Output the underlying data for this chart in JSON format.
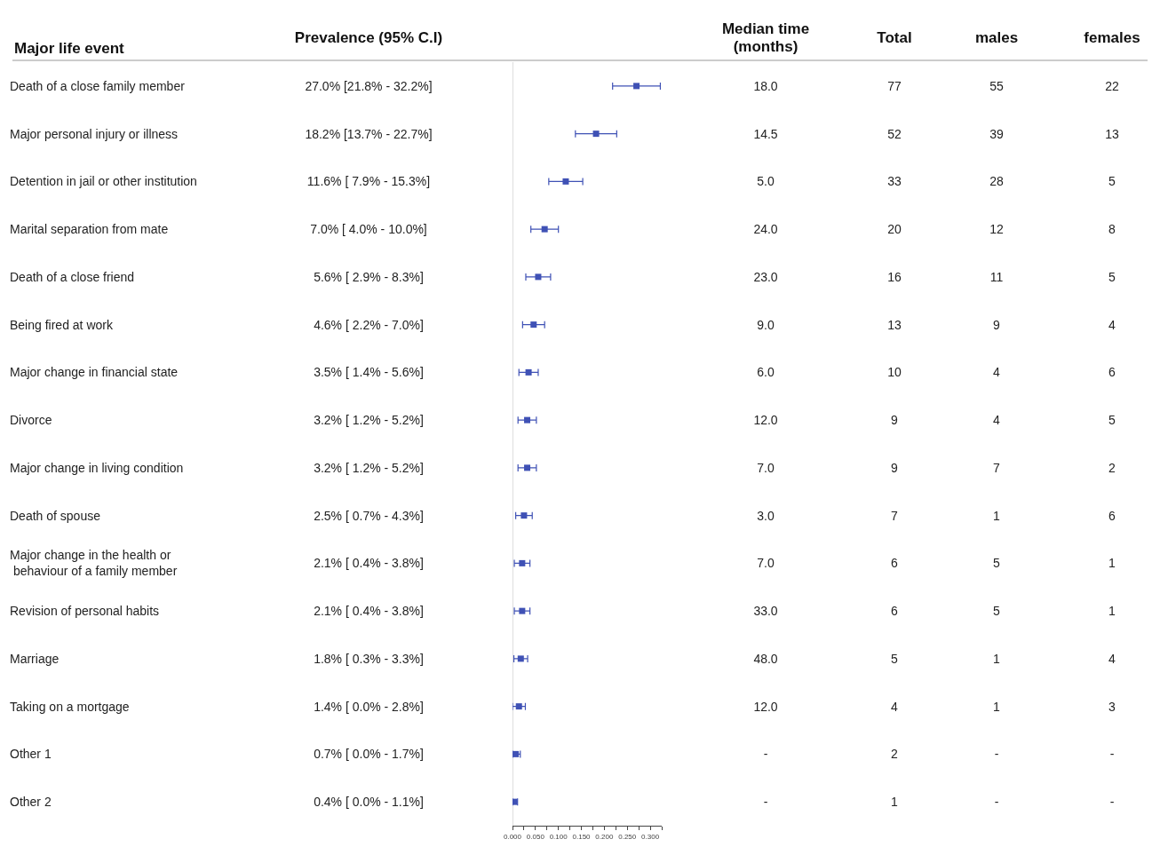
{
  "chart_data": [
    {
      "type": "scatter",
      "orientation": "horizontal",
      "ylabel": "Major life event",
      "marker": "square",
      "tick_labels": "x",
      "categories": [
        "Death of a close family member",
        "Major personal injury or illness",
        "Detention in jail or other institution",
        "Marital separation from mate",
        "Death of a close friend",
        "Being fired at work",
        "Major change in financial state",
        "Divorce",
        "Major change in living condition",
        "Death of spouse",
        "Major change in the health or\n behaviour of a family member",
        "Revision of personal habits",
        "Marriage",
        "Taking on a mortgage",
        "Other 1",
        "Other 2"
      ],
      "xlim": [
        0,
        0.325
      ],
      "xticks": [
        {
          "value": 0,
          "label": "0.000"
        },
        {
          "value": 0.025,
          "label": null
        },
        {
          "value": 0.05,
          "label": "0.050"
        },
        {
          "value": 0.075,
          "label": null
        },
        {
          "value": 0.1,
          "label": "0.100"
        },
        {
          "value": 0.125,
          "label": null
        },
        {
          "value": 0.15,
          "label": "0.150"
        },
        {
          "value": 0.175,
          "label": null
        },
        {
          "value": 0.2,
          "label": "0.200"
        },
        {
          "value": 0.225,
          "label": null
        },
        {
          "value": 0.25,
          "label": "0.250"
        },
        {
          "value": 0.275,
          "label": null
        },
        {
          "value": 0.3,
          "label": "0.300"
        },
        {
          "value": 0.325,
          "label": null
        }
      ],
      "series": [
        {
          "color": "#3f51b5",
          "values": [
            0.27,
            0.182,
            0.116,
            0.07,
            0.056,
            0.046,
            0.035,
            0.032,
            0.032,
            0.025,
            0.021,
            0.021,
            0.018,
            0.014,
            0.007,
            0.004
          ],
          "errors": [
            [
              0.218,
              0.322
            ],
            [
              0.137,
              0.227
            ],
            [
              0.079,
              0.153
            ],
            [
              0.04,
              0.1
            ],
            [
              0.029,
              0.083
            ],
            [
              0.022,
              0.07
            ],
            [
              0.014,
              0.056
            ],
            [
              0.012,
              0.052
            ],
            [
              0.012,
              0.052
            ],
            [
              0.007,
              0.043
            ],
            [
              0.004,
              0.038
            ],
            [
              0.004,
              0.038
            ],
            [
              0.003,
              0.033
            ],
            [
              0.0,
              0.028
            ],
            [
              0.0,
              0.017
            ],
            [
              0.0,
              0.011
            ]
          ]
        }
      ]
    },
    {
      "type": "other",
      "title": "Prevalence (95% C.I)",
      "annotations": [
        "27.0% [21.8% - 32.2%]",
        "18.2% [13.7% - 22.7%]",
        "11.6% [ 7.9% - 15.3%]",
        "7.0% [ 4.0% - 10.0%]",
        "5.6% [ 2.9% - 8.3%]",
        "4.6% [ 2.2% - 7.0%]",
        "3.5% [ 1.4% - 5.6%]",
        "3.2% [ 1.2% - 5.2%]",
        "3.2% [ 1.2% - 5.2%]",
        "2.5% [ 0.7% - 4.3%]",
        "2.1% [ 0.4% - 3.8%]",
        "2.1% [ 0.4% - 3.8%]",
        "1.8% [ 0.3% - 3.3%]",
        "1.4% [ 0.0% - 2.8%]",
        "0.7% [ 0.0% - 1.7%]",
        "0.4% [ 0.0% - 1.1%]"
      ]
    },
    {
      "type": "other",
      "title": "Median time\n(months)",
      "annotations": [
        "18.0",
        "14.5",
        "5.0",
        "24.0",
        "23.0",
        "9.0",
        "6.0",
        "12.0",
        "7.0",
        "3.0",
        "7.0",
        "33.0",
        "48.0",
        "12.0",
        "-",
        "-"
      ]
    },
    {
      "type": "other",
      "title": "Total",
      "annotations": [
        "77",
        "52",
        "33",
        "20",
        "16",
        "13",
        "10",
        "9",
        "9",
        "7",
        "6",
        "6",
        "5",
        "4",
        "2",
        "1"
      ]
    },
    {
      "type": "other",
      "title": "males",
      "annotations": [
        "55",
        "39",
        "28",
        "12",
        "11",
        "9",
        "4",
        "4",
        "7",
        "1",
        "5",
        "5",
        "1",
        "1",
        "-",
        "-"
      ]
    },
    {
      "type": "other",
      "title": "females",
      "annotations": [
        "22",
        "13",
        "5",
        "8",
        "5",
        "4",
        "6",
        "5",
        "2",
        "6",
        "1",
        "1",
        "4",
        "3",
        "-",
        "-"
      ]
    }
  ]
}
